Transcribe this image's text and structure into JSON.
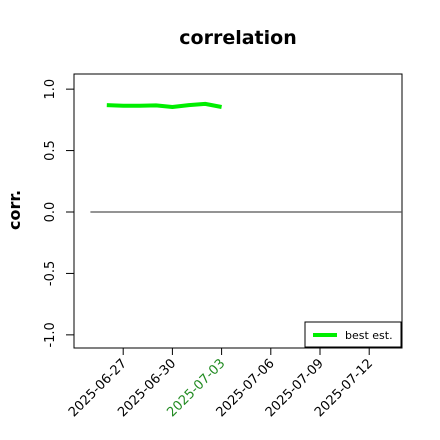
{
  "chart_data": {
    "type": "line",
    "title": "correlation",
    "xlabel": "",
    "ylabel": "corr.",
    "ylim": [
      -1.05,
      1.05
    ],
    "xlim": [
      "2025-06-24",
      "2025-07-14"
    ],
    "y_ticks": [
      "-1.0",
      "-0.5",
      "0.0",
      "0.5",
      "1.0"
    ],
    "y_tick_values": [
      -1.0,
      -0.5,
      0.0,
      0.5,
      1.0
    ],
    "x_ticks": [
      "2025-06-27",
      "2025-06-30",
      "2025-07-03",
      "2025-07-06",
      "2025-07-09",
      "2025-07-12"
    ],
    "x_tick_dates": [
      "2025-06-27",
      "2025-06-30",
      "2025-07-03",
      "2025-07-06",
      "2025-07-09",
      "2025-07-12"
    ],
    "highlighted_tick": "2025-07-03",
    "reference_line": {
      "y": 0.0,
      "from": "2025-06-25",
      "to": "2025-07-14"
    },
    "series": [
      {
        "name": "best est.",
        "color": "#00ee00",
        "x": [
          "2025-06-26",
          "2025-06-27",
          "2025-06-28",
          "2025-06-29",
          "2025-06-30",
          "2025-07-01",
          "2025-07-02",
          "2025-07-03"
        ],
        "values": [
          0.87,
          0.865,
          0.865,
          0.868,
          0.855,
          0.87,
          0.88,
          0.855
        ]
      }
    ],
    "legend_position": "bottom-right",
    "grid": false
  },
  "colors": {
    "series": "#00ee00",
    "highlighted_tick": "#228b22",
    "axis": "#000000",
    "reference_line": "#555555"
  }
}
